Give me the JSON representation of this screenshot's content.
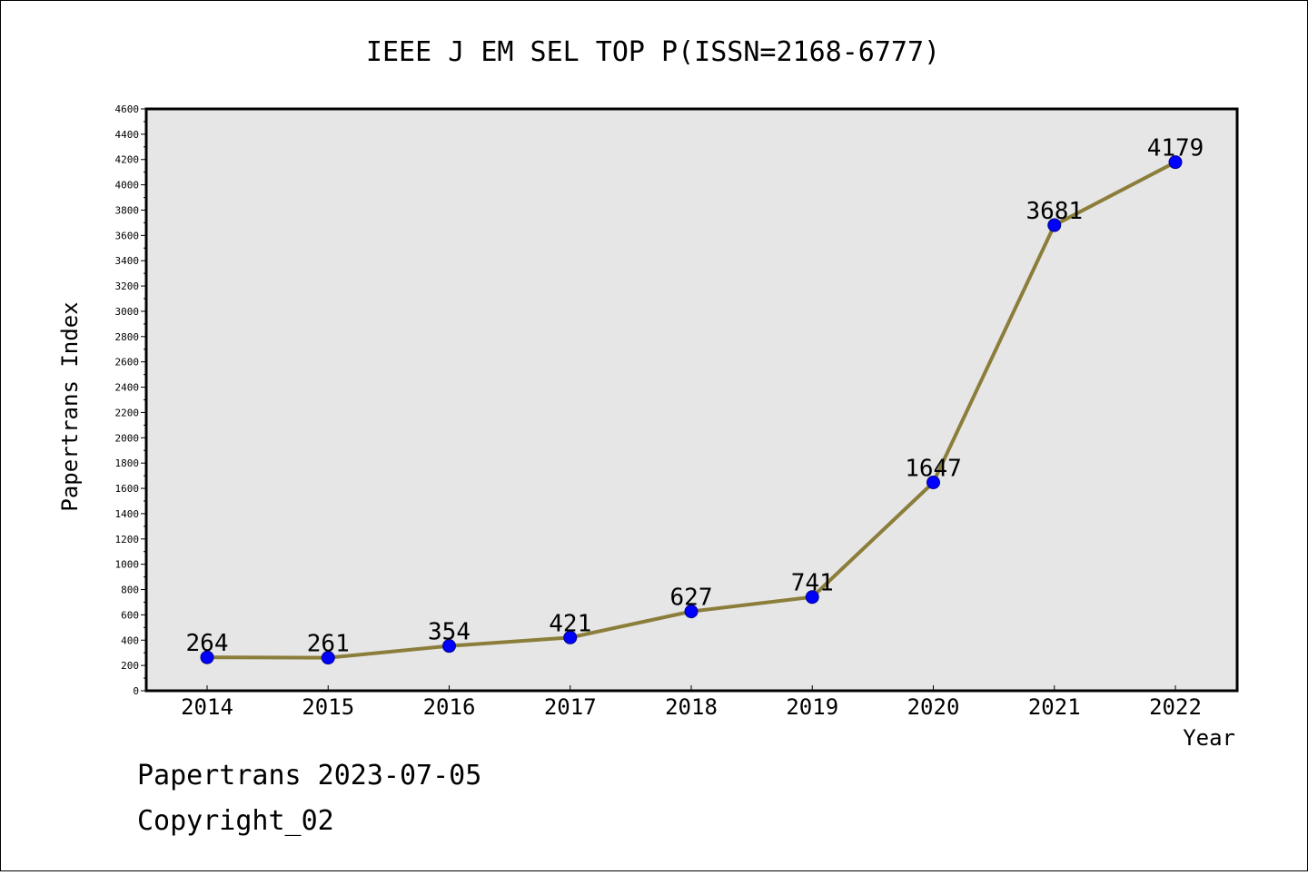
{
  "chart_data": {
    "type": "line",
    "title": "IEEE J EM SEL TOP P(ISSN=2168-6777)",
    "xlabel": "Year",
    "ylabel": "Papertrans Index",
    "categories": [
      "2014",
      "2015",
      "2016",
      "2017",
      "2018",
      "2019",
      "2020",
      "2021",
      "2022"
    ],
    "series": [
      {
        "values": [
          264,
          261,
          354,
          421,
          627,
          741,
          1647,
          3681,
          4179
        ]
      }
    ],
    "data_labels": [
      "264",
      "261",
      "354",
      "421",
      "627",
      "741",
      "1647",
      "3681",
      "4179"
    ],
    "ylim": [
      0,
      4600
    ],
    "ytick_labels": [
      "0",
      "200",
      "400",
      "600",
      "800",
      "1000",
      "1200",
      "1400",
      "1600",
      "1800",
      "2000",
      "2200",
      "2400",
      "2600",
      "2800",
      "3000",
      "3200",
      "3400",
      "3600",
      "3800",
      "4000",
      "4200",
      "4400",
      "4600"
    ],
    "grid": false,
    "line_color": "#8b7d3a",
    "marker_color": "#0000ff",
    "plot_background": "#e6e6e6"
  },
  "footer": {
    "line1": "Papertrans 2023-07-05",
    "line2": "Copyright_02"
  }
}
